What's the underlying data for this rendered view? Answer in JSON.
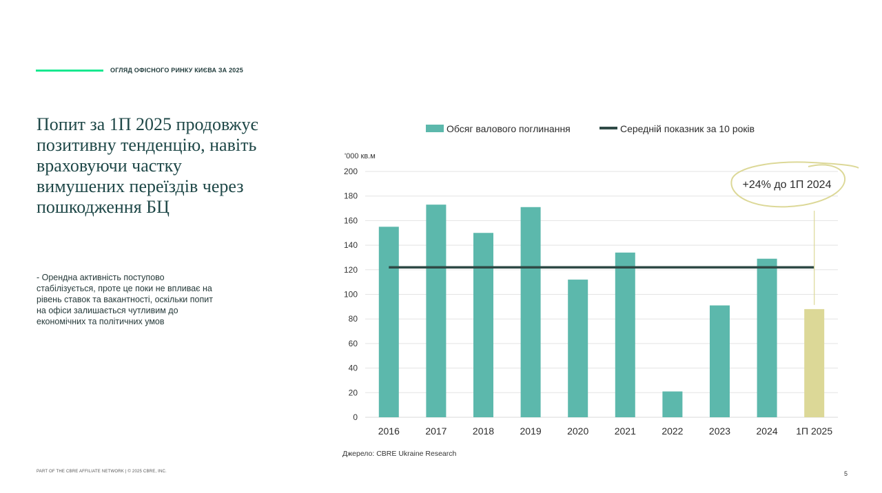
{
  "header": {
    "title": "ОГЛЯД ОФІСНОГО РИНКУ КИЄВА ЗА 2025"
  },
  "headline": "Попит за 1П 2025 продовжує позитивну тенденцію, навіть враховуючи частку вимушених переїздів через пошкодження БЦ",
  "body_text": "- Орендна активність поступово стабілізується, проте це поки не впливає на рівень ставок та вакантності, оскільки попит на офіси залишається чутливим до економічних та політичних умов",
  "footer": {
    "left": "PART OF THE CBRE AFFILIATE NETWORK | © 2025 CBRE, Inc.",
    "page_number": "5"
  },
  "source": "Джерело: CBRE Ukraine Research",
  "colors": {
    "accent_line": "#17e88f",
    "bar": "#5cb8ac",
    "highlight_bar": "#dcd897",
    "avg_line": "#2f4a46",
    "annotation_oval": "#dcd897"
  },
  "chart_data": {
    "type": "bar",
    "categories": [
      "2016",
      "2017",
      "2018",
      "2019",
      "2020",
      "2021",
      "2022",
      "2023",
      "2024",
      "1П 2025"
    ],
    "series": [
      {
        "name": "Обсяг валового поглинання",
        "values": [
          155,
          173,
          150,
          171,
          112,
          134,
          21,
          91,
          129,
          88
        ]
      },
      {
        "name": "Середній показник за 10 років",
        "type": "line",
        "value": 122
      }
    ],
    "highlight_category": "1П 2025",
    "ylabel": "'000 кв.м",
    "ylim": [
      0,
      200
    ],
    "yticks": [
      0,
      20,
      40,
      60,
      80,
      100,
      120,
      140,
      160,
      180,
      200
    ],
    "grid": true,
    "legend_position": "top",
    "annotation": {
      "text": "+24% до 1П 2024",
      "target": "1П 2025"
    }
  }
}
